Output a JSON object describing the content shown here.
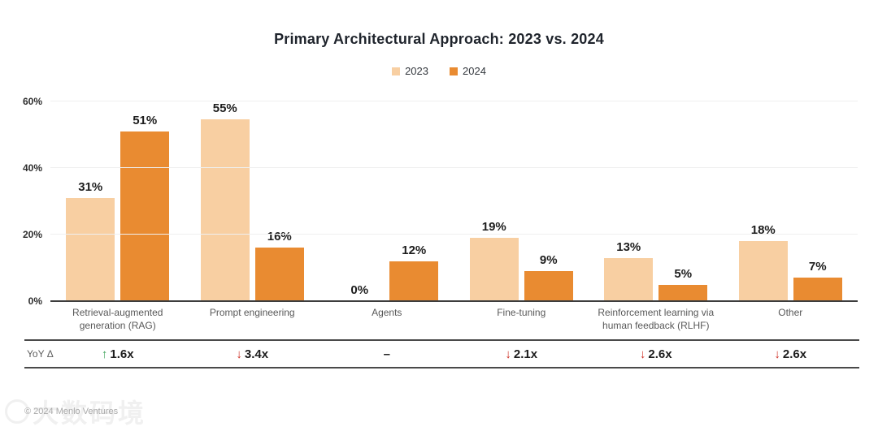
{
  "chart_data": {
    "type": "bar",
    "title": "Primary Architectural Approach: 2023 vs. 2024",
    "categories": [
      "Retrieval-augmented generation (RAG)",
      "Prompt engineering",
      "Agents",
      "Fine-tuning",
      "Reinforcement learning via human feedback (RLHF)",
      "Other"
    ],
    "series": [
      {
        "name": "2023",
        "color": "#F8CFA2",
        "values": [
          31,
          55,
          0,
          19,
          13,
          18
        ]
      },
      {
        "name": "2024",
        "color": "#E98B31",
        "values": [
          51,
          16,
          12,
          9,
          5,
          7
        ]
      }
    ],
    "value_suffix": "%",
    "ylabel": "",
    "xlabel": "",
    "ylim": [
      0,
      60
    ],
    "yticks": [
      0,
      20,
      40,
      60
    ],
    "grid": true,
    "legend_position": "top"
  },
  "yoy": {
    "label": "YoY Δ",
    "up_color": "#3FA45B",
    "down_color": "#CE3026",
    "values": [
      {
        "dir": "up",
        "text": "1.6x"
      },
      {
        "dir": "down",
        "text": "3.4x"
      },
      {
        "dir": "none",
        "text": "–"
      },
      {
        "dir": "down",
        "text": "2.1x"
      },
      {
        "dir": "down",
        "text": "2.6x"
      },
      {
        "dir": "down",
        "text": "2.6x"
      }
    ]
  },
  "footer": {
    "copyright": "© 2024 Menlo Ventures"
  },
  "watermark": {
    "text": "大数码境"
  }
}
